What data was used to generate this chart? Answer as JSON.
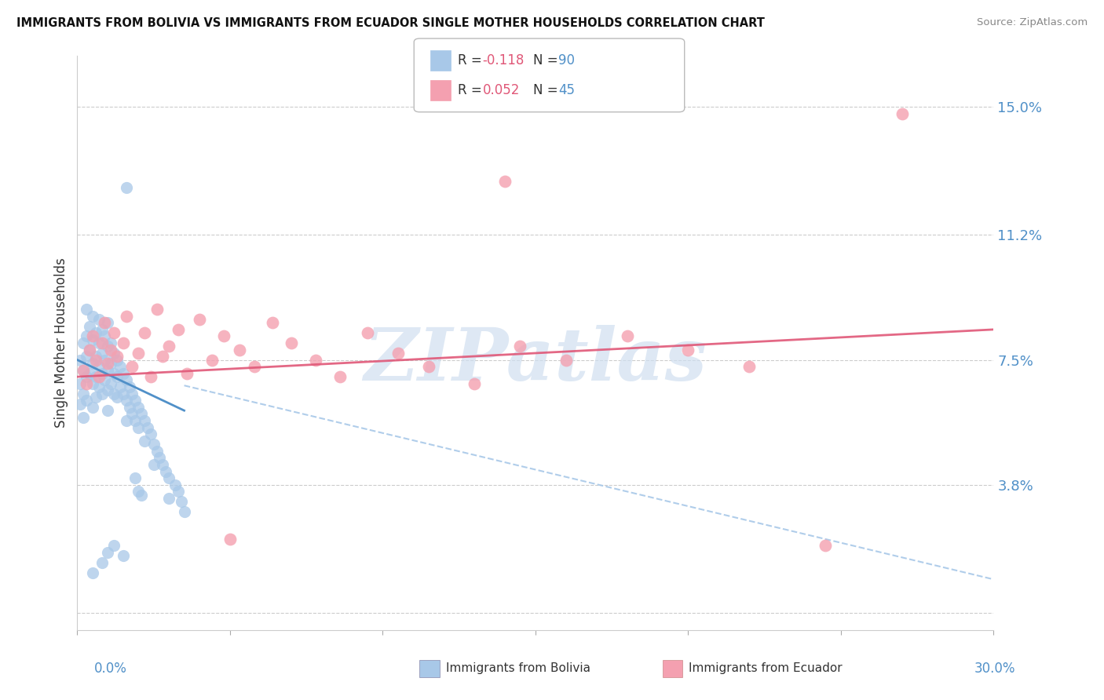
{
  "title": "IMMIGRANTS FROM BOLIVIA VS IMMIGRANTS FROM ECUADOR SINGLE MOTHER HOUSEHOLDS CORRELATION CHART",
  "source": "Source: ZipAtlas.com",
  "ylabel": "Single Mother Households",
  "yticks": [
    0.0,
    0.038,
    0.075,
    0.112,
    0.15
  ],
  "ytick_labels": [
    "",
    "3.8%",
    "7.5%",
    "11.2%",
    "15.0%"
  ],
  "xmin": 0.0,
  "xmax": 0.3,
  "ymin": -0.005,
  "ymax": 0.165,
  "color_bolivia": "#A8C8E8",
  "color_ecuador": "#F4A0B0",
  "color_bolivia_trend": "#5090C8",
  "color_ecuador_trend": "#E05878",
  "color_bolivia_dash": "#A8C8E8",
  "watermark_color": "#D0DFF0",
  "watermark_text": "ZIPatlas"
}
